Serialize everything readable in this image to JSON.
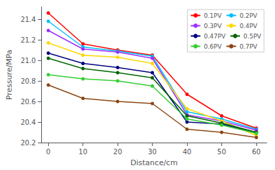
{
  "chart_data": {
    "type": "line",
    "xlabel": "Distance/cm",
    "ylabel": "Pressure/MPa",
    "x": [
      0,
      10,
      20,
      30,
      40,
      50,
      60
    ],
    "series": [
      {
        "name": "0.1PV",
        "color": "#FF0000",
        "values": [
          21.46,
          21.16,
          21.1,
          21.05,
          20.67,
          20.46,
          20.34
        ]
      },
      {
        "name": "0.2PV",
        "color": "#00BFFF",
        "values": [
          21.38,
          21.13,
          21.09,
          21.04,
          20.5,
          20.43,
          20.33
        ]
      },
      {
        "name": "0.3PV",
        "color": "#9B30FF",
        "values": [
          21.29,
          21.11,
          21.08,
          21.02,
          20.47,
          20.41,
          20.32
        ]
      },
      {
        "name": "0.4PV",
        "color": "#FFD700",
        "values": [
          21.17,
          21.05,
          21.03,
          20.97,
          20.53,
          20.41,
          20.27
        ]
      },
      {
        "name": "0.47PV",
        "color": "#000080",
        "values": [
          21.07,
          20.97,
          20.93,
          20.88,
          20.4,
          20.38,
          20.3
        ]
      },
      {
        "name": "0.5PV",
        "color": "#006400",
        "values": [
          21.02,
          20.92,
          20.88,
          20.83,
          20.46,
          20.39,
          20.3
        ]
      },
      {
        "name": "0.6PV",
        "color": "#32CD32",
        "values": [
          20.86,
          20.82,
          20.8,
          20.75,
          20.43,
          20.37,
          20.29
        ]
      },
      {
        "name": "0.7PV",
        "color": "#8B4513",
        "values": [
          20.76,
          20.63,
          20.6,
          20.58,
          20.33,
          20.3,
          20.25
        ]
      }
    ],
    "xlim": [
      -2,
      63
    ],
    "ylim": [
      20.2,
      21.52
    ],
    "xticks": [
      0,
      10,
      20,
      30,
      40,
      50,
      60
    ],
    "yticks": [
      20.2,
      20.4,
      20.6,
      20.8,
      {
        "value": 21.0,
        "label": "21.0"
      },
      21.2,
      21.4
    ],
    "grid": false,
    "legend": "upper right",
    "marker": "circle"
  }
}
